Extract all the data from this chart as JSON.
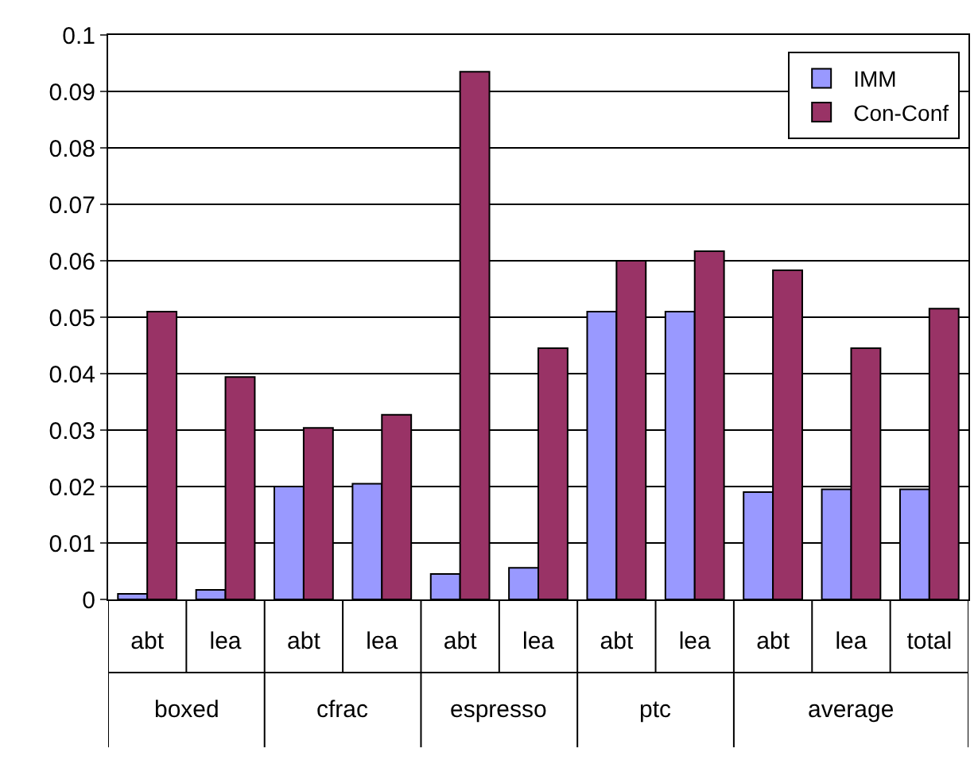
{
  "chart_data": {
    "type": "bar",
    "categories": [
      "abt",
      "lea",
      "abt",
      "lea",
      "abt",
      "lea",
      "abt",
      "lea",
      "abt",
      "lea",
      "total"
    ],
    "series": [
      {
        "name": "IMM",
        "color": "#9999ff",
        "values": [
          0.001,
          0.0017,
          0.02,
          0.0205,
          0.0045,
          0.0056,
          0.051,
          0.051,
          0.019,
          0.0195,
          0.0195
        ]
      },
      {
        "name": "Con-Conf",
        "color": "#993366",
        "values": [
          0.051,
          0.0394,
          0.0304,
          0.0327,
          0.0935,
          0.0445,
          0.06,
          0.0617,
          0.0583,
          0.0445,
          0.0515
        ]
      }
    ],
    "annotations": [
      "boxed",
      "cfrac",
      "espresso",
      "ptc",
      "average"
    ],
    "ylim": [
      0,
      0.1
    ],
    "yticks": [
      0,
      0.01,
      0.02,
      0.03,
      0.04,
      0.05,
      0.06,
      0.07,
      0.08,
      0.09,
      0.1
    ],
    "grid": "y",
    "legend": "top right"
  }
}
